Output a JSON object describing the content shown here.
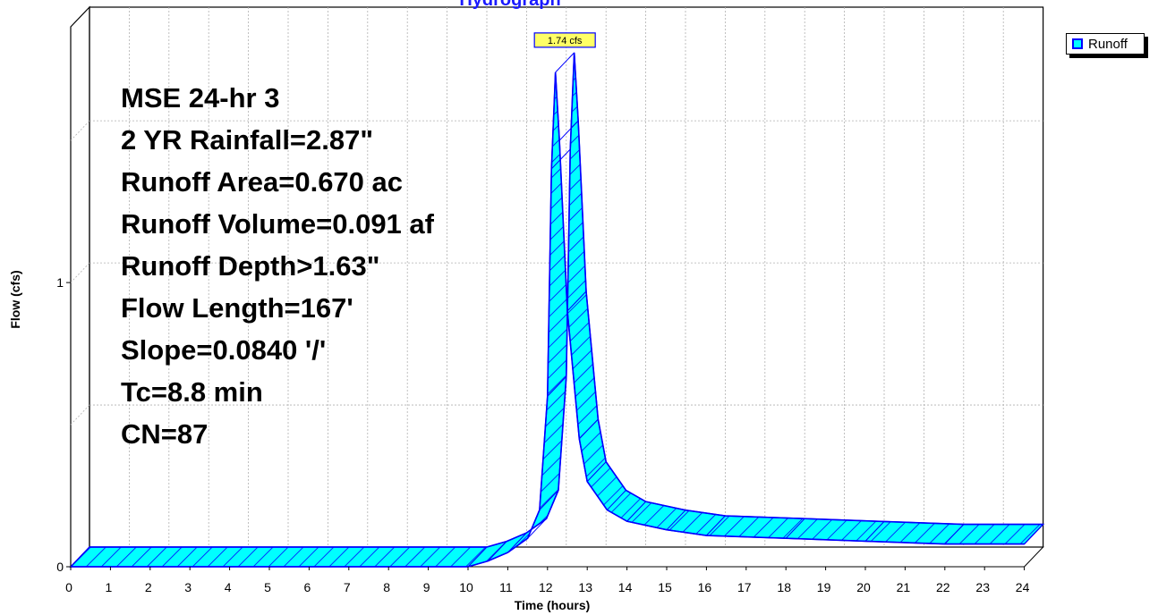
{
  "chart_data": {
    "type": "area",
    "title": "Hydrograph",
    "xlabel": "Time  (hours)",
    "ylabel": "Flow  (cfs)",
    "xlim": [
      0,
      24
    ],
    "ylim": [
      0,
      1.9
    ],
    "x_ticks": [
      "0",
      "1",
      "2",
      "3",
      "4",
      "5",
      "6",
      "7",
      "8",
      "9",
      "10",
      "11",
      "12",
      "13",
      "14",
      "15",
      "16",
      "17",
      "18",
      "19",
      "20",
      "21",
      "22",
      "23",
      "24"
    ],
    "y_ticks": [
      "0",
      "1"
    ],
    "grid": true,
    "legend_position": "top-right",
    "series": [
      {
        "name": "Runoff",
        "color": "#00ffff",
        "edge_color": "#0000ff",
        "x": [
          0,
          10,
          10.5,
          11,
          11.5,
          11.8,
          12.0,
          12.1,
          12.2,
          12.3,
          12.5,
          12.8,
          13.0,
          13.5,
          14.0,
          15.0,
          16.0,
          18.0,
          20.0,
          22.0,
          24.0
        ],
        "y": [
          0.0,
          0.0,
          0.02,
          0.05,
          0.1,
          0.2,
          0.6,
          1.4,
          1.74,
          1.5,
          0.9,
          0.45,
          0.3,
          0.2,
          0.16,
          0.13,
          0.11,
          0.1,
          0.09,
          0.08,
          0.08
        ]
      }
    ],
    "peak_label": "1.74 cfs",
    "annotations": [
      "MSE 24-hr 3",
      "2 YR Rainfall=2.87\"",
      "Runoff Area=0.670 ac",
      "Runoff Volume=0.091 af",
      "Runoff Depth>1.63\"",
      "Flow Length=167'",
      "Slope=0.0840 '/'",
      "Tc=8.8 min",
      "CN=87"
    ]
  }
}
